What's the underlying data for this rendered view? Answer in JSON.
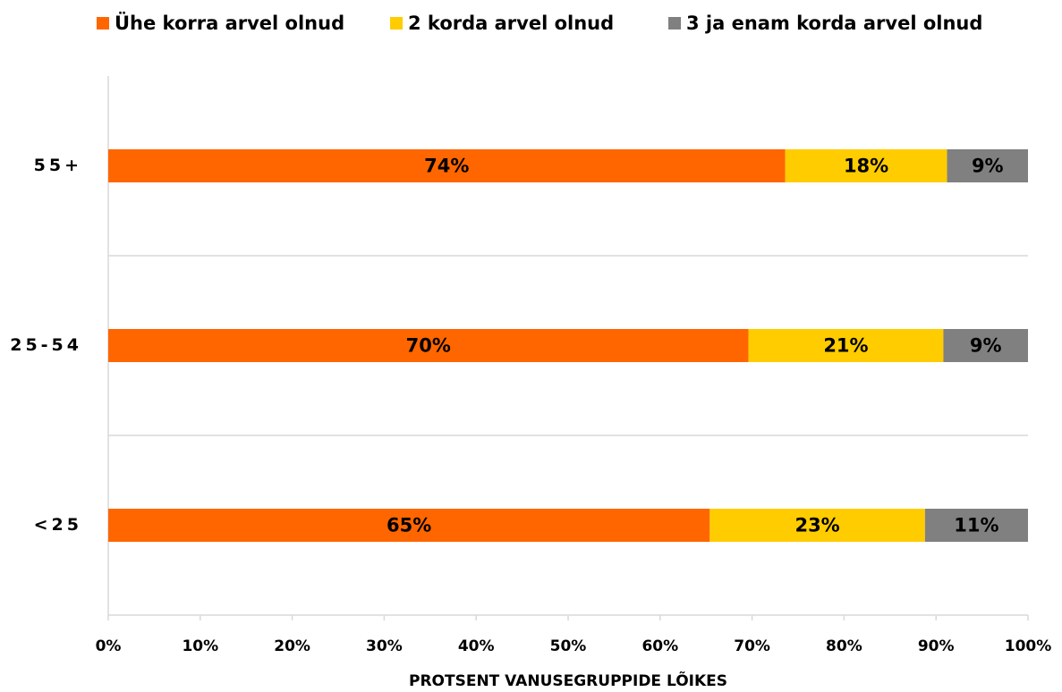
{
  "chart_data": {
    "type": "stacked_barh",
    "categories": [
      "55+",
      "25-54",
      "<25"
    ],
    "series": [
      {
        "name": "Ühe korra arvel olnud",
        "color": "#ff6600",
        "values": [
          73.6,
          69.6,
          65.4
        ],
        "value_labels": [
          "74%",
          "70%",
          "65%"
        ]
      },
      {
        "name": "2 korda arvel olnud",
        "color": "#ffcc00",
        "values": [
          17.6,
          21.2,
          23.4
        ],
        "value_labels": [
          "18%",
          "21%",
          "23%"
        ]
      },
      {
        "name": "3 ja enam korda arvel olnud",
        "color": "#808080",
        "values": [
          8.8,
          9.2,
          11.2
        ],
        "value_labels": [
          "9%",
          "9%",
          "11%"
        ]
      }
    ],
    "xlabel": "PROTSENT VANUSEGRUPPIDE LÕIKES",
    "xlim": [
      0,
      100
    ],
    "xticks": [
      {
        "value": 0,
        "label": "0%"
      },
      {
        "value": 10,
        "label": "10%"
      },
      {
        "value": 20,
        "label": "20%"
      },
      {
        "value": 30,
        "label": "30%"
      },
      {
        "value": 40,
        "label": "40%"
      },
      {
        "value": 50,
        "label": "50%"
      },
      {
        "value": 60,
        "label": "60%"
      },
      {
        "value": 70,
        "label": "70%"
      },
      {
        "value": 80,
        "label": "80%"
      },
      {
        "value": 90,
        "label": "90%"
      },
      {
        "value": 100,
        "label": "100%"
      }
    ],
    "legend": "top"
  }
}
